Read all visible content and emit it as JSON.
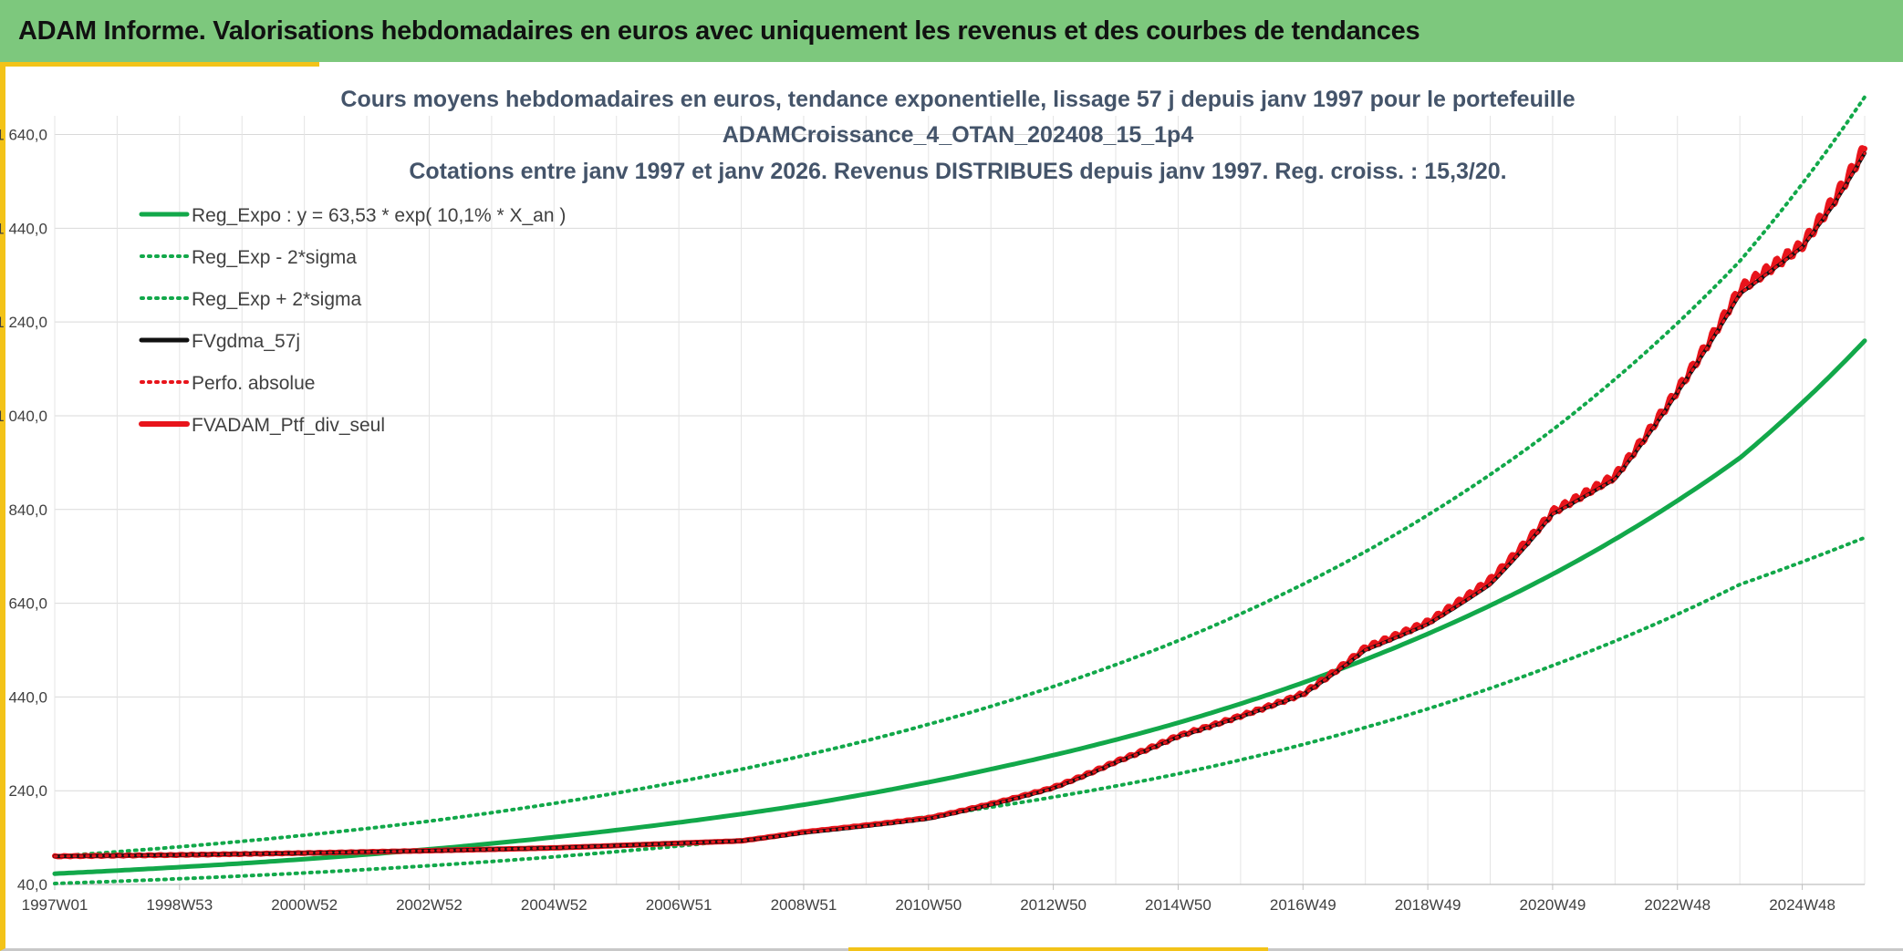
{
  "header": {
    "title": "ADAM Informe. Valorisations hebdomadaires en euros avec uniquement les revenus et des courbes de tendances"
  },
  "colors": {
    "header_bg": "#7dc87d",
    "accent": "#f3c318",
    "green_series": "#12a84a",
    "red_series": "#e8141b",
    "black_series": "#111111"
  },
  "chart_data": {
    "type": "line",
    "title": [
      "Cours moyens hebdomadaires en euros, tendance exponentielle, lissage 57 j depuis janv 1997 pour le portefeuille",
      "ADAMCroissance_4_OTAN_202408_15_1p4",
      "Cotations entre janv 1997 et janv 2026. Revenus DISTRIBUES depuis janv 1997. Reg. croiss. : 15,3/20."
    ],
    "x_tick_labels": [
      "1997W01",
      "1998W53",
      "2000W52",
      "2002W52",
      "2004W52",
      "2006W51",
      "2008W51",
      "2010W50",
      "2012W50",
      "2014W50",
      "2016W49",
      "2018W49",
      "2020W49",
      "2022W48",
      "2024W48"
    ],
    "x_range_years": [
      1997.0,
      2026.0
    ],
    "y_tick_labels": [
      "40,0",
      "240,0",
      "440,0",
      "640,0",
      "840,0",
      "1 040,0",
      "1 240,0",
      "1 440,0",
      "1 640,0"
    ],
    "ylim": [
      40,
      1680
    ],
    "grid": true,
    "legend_position": "top-left",
    "series": [
      {
        "name": "Reg_Expo : y = 63,53 * exp( 10,1% *  X_an )",
        "style": "solid",
        "color": "#12a84a",
        "x": [
          1997,
          2000,
          2003,
          2006,
          2009,
          2012,
          2015,
          2018,
          2021,
          2024,
          2026
        ],
        "y": [
          63,
          85,
          115,
          156,
          210,
          286,
          385,
          520,
          702,
          950,
          1200
        ]
      },
      {
        "name": "Reg_Exp - 2*sigma",
        "style": "dotted",
        "color": "#12a84a",
        "x": [
          1997,
          2000,
          2003,
          2006,
          2009,
          2012,
          2015,
          2018,
          2021,
          2024,
          2026
        ],
        "y": [
          42,
          58,
          80,
          110,
          150,
          205,
          276,
          375,
          507,
          680,
          780
        ]
      },
      {
        "name": "Reg_Exp + 2*sigma",
        "style": "dotted",
        "color": "#12a84a",
        "x": [
          1997,
          2000,
          2003,
          2006,
          2009,
          2012,
          2015,
          2018,
          2021,
          2024,
          2026
        ],
        "y": [
          100,
          132,
          175,
          235,
          315,
          420,
          560,
          750,
          1010,
          1370,
          1720
        ]
      },
      {
        "name": "FVgdma_57j",
        "style": "solid",
        "color": "#111111",
        "x": [
          1997,
          1999,
          2001,
          2003,
          2005,
          2007,
          2008,
          2009,
          2011,
          2013,
          2014,
          2015,
          2017,
          2018,
          2019,
          2020,
          2021,
          2022,
          2023,
          2024,
          2025,
          2025.5,
          2026
        ],
        "y": [
          100,
          103,
          107,
          112,
          118,
          128,
          133,
          150,
          180,
          245,
          300,
          355,
          445,
          540,
          595,
          680,
          830,
          905,
          1090,
          1300,
          1400,
          1490,
          1600
        ]
      },
      {
        "name": "Perfo. absolue",
        "style": "dotted",
        "color": "#e8141b",
        "x": [
          1997,
          1999,
          2001,
          2003,
          2005,
          2007,
          2008,
          2009,
          2011,
          2013,
          2014,
          2015,
          2017,
          2018,
          2019,
          2020,
          2021,
          2022,
          2023,
          2024,
          2025,
          2025.5,
          2026
        ],
        "y": [
          100,
          103,
          107,
          112,
          118,
          128,
          133,
          150,
          180,
          245,
          300,
          355,
          445,
          540,
          595,
          680,
          830,
          905,
          1090,
          1300,
          1400,
          1490,
          1600
        ]
      },
      {
        "name": "FVADAM_Ptf_div_seul",
        "style": "solid",
        "color": "#e8141b",
        "x": [
          1997,
          1999,
          2001,
          2003,
          2005,
          2007,
          2008,
          2009,
          2011,
          2013,
          2014,
          2015,
          2017,
          2018,
          2019,
          2020,
          2021,
          2022,
          2023,
          2024,
          2025,
          2025.5,
          2026
        ],
        "y": [
          100,
          103,
          107,
          112,
          118,
          128,
          133,
          152,
          182,
          247,
          302,
          357,
          447,
          545,
          600,
          690,
          835,
          912,
          1095,
          1310,
          1405,
          1500,
          1610
        ]
      }
    ]
  }
}
